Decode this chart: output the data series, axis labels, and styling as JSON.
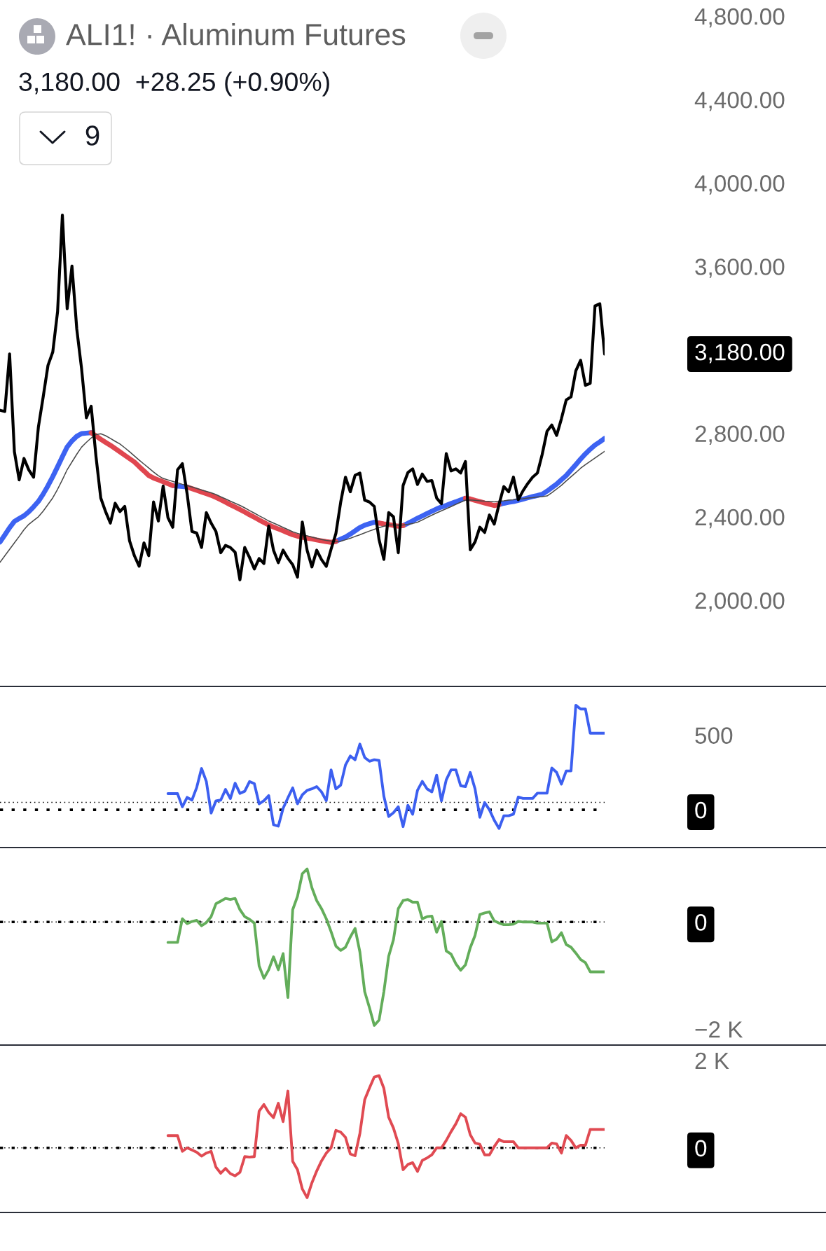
{
  "chart_data": [
    {
      "type": "line",
      "title": "ALI1! · Aluminum Futures",
      "subtitle": "3,180.00  +28.25 (+0.90%)",
      "categories": [
        null,
        null,
        null,
        null,
        null,
        null,
        null,
        null,
        null,
        null,
        null,
        null,
        null,
        null,
        null,
        null,
        null,
        null,
        null,
        null,
        null,
        null,
        null,
        null,
        null,
        null,
        null,
        null,
        null,
        null,
        null,
        null,
        null,
        null,
        null,
        null,
        null,
        null,
        null,
        null,
        null,
        null,
        null,
        null,
        null,
        null,
        null,
        null,
        null,
        null,
        null,
        null,
        null,
        null,
        null,
        null,
        null,
        null,
        null,
        null,
        null,
        null,
        null,
        null,
        null,
        null,
        null,
        null,
        null,
        null,
        null,
        null,
        null,
        null,
        null,
        null,
        null,
        null,
        null,
        null,
        null,
        null,
        null,
        null,
        null,
        null,
        null,
        null,
        null,
        null,
        null,
        null,
        null,
        null,
        null,
        null,
        null,
        null,
        null,
        null,
        null,
        null,
        null,
        null,
        null,
        null,
        null,
        null,
        null,
        null,
        null,
        null,
        null,
        null,
        null,
        null,
        null,
        null,
        null,
        null,
        null,
        null,
        null,
        null,
        null,
        null,
        null
      ],
      "series": [
        {
          "color": "#3d63f2",
          "values": [
            2279,
            2313,
            2348,
            2378,
            2392,
            2405,
            2424,
            2448,
            2474,
            2509,
            2549,
            2593,
            2640,
            2688,
            2735,
            2764,
            2786,
            2799,
            2801,
            2803,
            null,
            null,
            null,
            null,
            null,
            null,
            null,
            null,
            null,
            null,
            null,
            null,
            null,
            null,
            null,
            null,
            2550,
            2547,
            2545,
            2543,
            null,
            null,
            null,
            null,
            null,
            null,
            null,
            null,
            null,
            null,
            null,
            null,
            null,
            null,
            null,
            null,
            null,
            null,
            null,
            null,
            null,
            null,
            null,
            null,
            null,
            null,
            null,
            null,
            null,
            null,
            2282,
            2293,
            2303,
            2317,
            2333,
            2349,
            2360,
            2367,
            2374,
            2370,
            null,
            null,
            null,
            null,
            2358,
            2369,
            2381,
            2393,
            2404,
            2416,
            2427,
            2438,
            2447,
            2455,
            2464,
            2472,
            2481,
            2489,
            null,
            null,
            null,
            null,
            null,
            null,
            2459,
            2465,
            2470,
            2473,
            2479,
            2485,
            2491,
            2497,
            2502,
            2508,
            2523,
            2540,
            2557,
            2578,
            2598,
            2624,
            2650,
            2677,
            2702,
            2724,
            2744,
            2759,
            2776
          ]
        },
        {
          "color": "#e0464f",
          "values": [
            null,
            null,
            null,
            null,
            null,
            null,
            null,
            null,
            null,
            null,
            null,
            null,
            null,
            null,
            null,
            null,
            null,
            null,
            null,
            2803,
            2788,
            2772,
            2757,
            2743,
            2727,
            2711,
            2695,
            2679,
            2663,
            2641,
            2620,
            2598,
            2586,
            2577,
            2568,
            2559,
            2550,
            null,
            null,
            2543,
            2535,
            2527,
            2519,
            2511,
            2503,
            2493,
            2482,
            2470,
            2458,
            2447,
            2435,
            2423,
            2410,
            2398,
            2385,
            2373,
            2361,
            2351,
            2342,
            2333,
            2323,
            2314,
            2307,
            2302,
            2298,
            2294,
            2289,
            2285,
            2281,
            2278,
            2282,
            null,
            null,
            null,
            null,
            null,
            null,
            null,
            null,
            2370,
            2366,
            2363,
            2359,
            2355,
            2358,
            null,
            null,
            null,
            null,
            null,
            null,
            null,
            null,
            null,
            null,
            null,
            null,
            2489,
            2486,
            2479,
            2473,
            2466,
            2460,
            2454,
            2459,
            null,
            null,
            null,
            null,
            null,
            null,
            null,
            null,
            null,
            null,
            null,
            null,
            null,
            null,
            null,
            null,
            null,
            null,
            null,
            null,
            null,
            null
          ]
        },
        {
          "color": "#4a4a4a",
          "values": [
            2182,
            2213,
            2244,
            2275,
            2306,
            2338,
            2364,
            2382,
            2400,
            2427,
            2459,
            2491,
            2532,
            2578,
            2626,
            2663,
            2700,
            2734,
            2757,
            2778,
            2794,
            2798,
            2789,
            2776,
            2762,
            2749,
            2731,
            2712,
            2692,
            2672,
            2653,
            2634,
            2615,
            2597,
            2584,
            2577,
            2570,
            2563,
            2556,
            2550,
            2543,
            2536,
            2529,
            2522,
            2515,
            2507,
            2496,
            2486,
            2475,
            2465,
            2455,
            2443,
            2430,
            2418,
            2405,
            2393,
            2380,
            2370,
            2360,
            2349,
            2339,
            2328,
            2321,
            2315,
            2309,
            2303,
            2297,
            2291,
            2287,
            2284,
            2280,
            2283,
            2290,
            2297,
            2306,
            2314,
            2323,
            2332,
            2340,
            2348,
            2355,
            2362,
            2361,
            2360,
            2361,
            2364,
            2368,
            2374,
            2385,
            2397,
            2408,
            2419,
            2429,
            2439,
            2449,
            2460,
            2470,
            2480,
            2481,
            2479,
            2477,
            2475,
            2474,
            2472,
            2475,
            2477,
            2480,
            2482,
            2485,
            2487,
            2490,
            2492,
            2495,
            2497,
            2500,
            2516,
            2533,
            2551,
            2572,
            2592,
            2612,
            2633,
            2650,
            2666,
            2682,
            2698,
            2714
          ]
        },
        {
          "color": "#000000",
          "values": [
            2911,
            2905,
            3181,
            2712,
            2577,
            2680,
            2625,
            2590,
            2830,
            2975,
            3126,
            3190,
            3384,
            3846,
            3397,
            3602,
            3300,
            3110,
            2875,
            2930,
            2690,
            2490,
            2425,
            2370,
            2465,
            2425,
            2450,
            2285,
            2214,
            2163,
            2275,
            2214,
            2471,
            2380,
            2548,
            2396,
            2350,
            2625,
            2655,
            2510,
            2330,
            2322,
            2253,
            2420,
            2370,
            2330,
            2228,
            2263,
            2253,
            2230,
            2098,
            2253,
            2205,
            2150,
            2200,
            2176,
            2356,
            2240,
            2180,
            2240,
            2201,
            2170,
            2111,
            2375,
            2240,
            2160,
            2240,
            2195,
            2163,
            2245,
            2320,
            2470,
            2590,
            2520,
            2599,
            2610,
            2480,
            2471,
            2450,
            2290,
            2196,
            2420,
            2400,
            2228,
            2550,
            2612,
            2630,
            2555,
            2605,
            2570,
            2574,
            2490,
            2463,
            2703,
            2620,
            2630,
            2610,
            2665,
            2242,
            2280,
            2350,
            2325,
            2409,
            2365,
            2460,
            2545,
            2520,
            2590,
            2482,
            2525,
            2560,
            2590,
            2610,
            2700,
            2810,
            2840,
            2790,
            2870,
            2960,
            2975,
            3100,
            3150,
            3030,
            3040,
            3411,
            3421,
            3180
          ]
        }
      ],
      "ylim": [
        1587,
        4800
      ],
      "yticks": [
        {
          "value": 2000,
          "label": "2,000.00"
        },
        {
          "value": 2400,
          "label": "2,400.00"
        },
        {
          "value": 2800,
          "label": "2,800.00"
        },
        {
          "value": 3600,
          "label": "3,600.00"
        },
        {
          "value": 4000,
          "label": "4,000.00"
        },
        {
          "value": 4400,
          "label": "4,400.00"
        },
        {
          "value": 4800,
          "label": "4,800.00"
        }
      ],
      "tick_labels": "y",
      "annotations": [
        "3,180.00",
        "9"
      ]
    },
    {
      "type": "line",
      "categories": [
        null,
        null,
        null,
        null,
        null,
        null,
        null,
        null,
        null,
        null,
        null,
        null,
        null,
        null,
        null,
        null,
        null,
        null,
        null,
        null,
        null,
        null,
        null,
        null,
        null,
        null,
        null,
        null,
        null,
        null,
        null,
        null,
        null,
        null,
        null,
        null,
        null,
        null,
        null,
        null,
        null,
        null,
        null,
        null,
        null,
        null,
        null,
        null,
        null,
        null,
        null,
        null,
        null,
        null,
        null,
        null,
        null,
        null,
        null,
        null,
        null,
        null,
        null,
        null,
        null,
        null,
        null,
        null,
        null,
        null,
        null,
        null,
        null,
        null,
        null,
        null,
        null,
        null,
        null,
        null,
        null,
        null,
        null,
        null,
        null,
        null,
        null,
        null,
        null,
        null,
        null,
        null,
        null,
        null,
        null,
        null,
        null,
        null,
        null,
        null,
        null,
        null,
        null,
        null,
        null,
        null,
        null,
        null,
        null,
        null,
        null,
        null,
        null,
        null,
        null,
        null,
        null,
        null,
        null,
        null,
        null,
        null,
        null,
        null,
        null,
        null,
        null
      ],
      "series": [
        {
          "color": "#3c5ff0",
          "values": [
            null,
            null,
            null,
            null,
            null,
            null,
            null,
            null,
            null,
            null,
            null,
            null,
            null,
            null,
            null,
            null,
            null,
            null,
            null,
            null,
            null,
            null,
            null,
            null,
            null,
            null,
            null,
            null,
            null,
            null,
            null,
            null,
            null,
            null,
            null,
            108,
            108,
            108,
            20,
            83,
            65,
            150,
            277,
            190,
            -22,
            59,
            65,
            136,
            75,
            178,
            110,
            124,
            189,
            175,
            40,
            61,
            95,
            -100,
            -110,
            10,
            80,
            147,
            40,
            100,
            130,
            140,
            155,
            120,
            61,
            267,
            140,
            165,
            300,
            360,
            335,
            440,
            350,
            325,
            335,
            330,
            90,
            -45,
            -20,
            20,
            -113,
            30,
            -30,
            130,
            190,
            140,
            120,
            232,
            60,
            200,
            267,
            267,
            161,
            155,
            250,
            140,
            -50,
            48,
            0,
            -70,
            -125,
            -40,
            -40,
            -30,
            85,
            76,
            76,
            76,
            111,
            111,
            111,
            280,
            250,
            172,
            260,
            260,
            700,
            675,
            675,
            513,
            513,
            513,
            513
          ]
        }
      ],
      "ylim": [
        -253,
        826
      ],
      "yticks": [
        0,
        500
      ],
      "tick_labels": "y",
      "ref_lines": [
        {
          "axis": "y",
          "value": 50,
          "line_style": "dotted",
          "color": "#000000"
        },
        {
          "axis": "y",
          "value": 0,
          "line_style": "dashed",
          "color": "#000000"
        }
      ]
    },
    {
      "type": "line",
      "categories": [
        null,
        null,
        null,
        null,
        null,
        null,
        null,
        null,
        null,
        null,
        null,
        null,
        null,
        null,
        null,
        null,
        null,
        null,
        null,
        null,
        null,
        null,
        null,
        null,
        null,
        null,
        null,
        null,
        null,
        null,
        null,
        null,
        null,
        null,
        null,
        null,
        null,
        null,
        null,
        null,
        null,
        null,
        null,
        null,
        null,
        null,
        null,
        null,
        null,
        null,
        null,
        null,
        null,
        null,
        null,
        null,
        null,
        null,
        null,
        null,
        null,
        null,
        null,
        null,
        null,
        null,
        null,
        null,
        null,
        null,
        null,
        null,
        null,
        null,
        null,
        null,
        null,
        null,
        null,
        null,
        null,
        null,
        null,
        null,
        null,
        null,
        null,
        null,
        null,
        null,
        null,
        null,
        null,
        null,
        null,
        null,
        null,
        null,
        null,
        null,
        null,
        null,
        null,
        null,
        null,
        null,
        null,
        null,
        null,
        null,
        null,
        null,
        null,
        null,
        null,
        null,
        null,
        null,
        null,
        null,
        null,
        null,
        null,
        null,
        null,
        null,
        null
      ],
      "series": [
        {
          "color": "#63ad5a",
          "values": [
            null,
            null,
            null,
            null,
            null,
            null,
            null,
            null,
            null,
            null,
            null,
            null,
            null,
            null,
            null,
            null,
            null,
            null,
            null,
            null,
            null,
            null,
            null,
            null,
            null,
            null,
            null,
            null,
            null,
            null,
            null,
            null,
            null,
            null,
            null,
            -380,
            -380,
            -380,
            60,
            -30,
            10,
            30,
            -70,
            -10,
            100,
            340,
            390,
            440,
            420,
            440,
            230,
            100,
            50,
            -20,
            -820,
            -1050,
            -890,
            -650,
            -890,
            -590,
            -1410,
            230,
            480,
            900,
            990,
            640,
            400,
            250,
            60,
            -180,
            -450,
            -530,
            -470,
            -280,
            -120,
            -560,
            -1300,
            -1600,
            -1930,
            -1830,
            -1300,
            -640,
            -330,
            250,
            400,
            420,
            370,
            370,
            60,
            100,
            110,
            -190,
            10,
            -540,
            -600,
            -780,
            -900,
            -800,
            -480,
            -250,
            140,
            170,
            190,
            20,
            -20,
            -50,
            -50,
            -40,
            10,
            0,
            0,
            0,
            -20,
            -20,
            -20,
            -370,
            -320,
            -200,
            -420,
            -470,
            -580,
            -700,
            -760,
            -930,
            -930,
            -930,
            -930
          ]
        }
      ],
      "ylim": [
        -2297,
        1390
      ],
      "yticks": [
        0,
        {
          "value": -2000,
          "label": "−2 K"
        }
      ],
      "tick_labels": "y",
      "ref_lines": [
        {
          "axis": "y",
          "value": 0,
          "line_style": "dotted",
          "color": "#000000"
        },
        {
          "axis": "y",
          "value": 0,
          "line_style": "dashed",
          "color": "#000000"
        }
      ]
    },
    {
      "type": "line",
      "categories": [
        null,
        null,
        null,
        null,
        null,
        null,
        null,
        null,
        null,
        null,
        null,
        null,
        null,
        null,
        null,
        null,
        null,
        null,
        null,
        null,
        null,
        null,
        null,
        null,
        null,
        null,
        null,
        null,
        null,
        null,
        null,
        null,
        null,
        null,
        null,
        null,
        null,
        null,
        null,
        null,
        null,
        null,
        null,
        null,
        null,
        null,
        null,
        null,
        null,
        null,
        null,
        null,
        null,
        null,
        null,
        null,
        null,
        null,
        null,
        null,
        null,
        null,
        null,
        null,
        null,
        null,
        null,
        null,
        null,
        null,
        null,
        null,
        null,
        null,
        null,
        null,
        null,
        null,
        null,
        null,
        null,
        null,
        null,
        null,
        null,
        null,
        null,
        null,
        null,
        null,
        null,
        null,
        null,
        null,
        null,
        null,
        null,
        null,
        null,
        null,
        null,
        null,
        null,
        null,
        null,
        null,
        null,
        null,
        null,
        null,
        null,
        null,
        null,
        null,
        null,
        null,
        null,
        null,
        null,
        null,
        null,
        null,
        null,
        null,
        null,
        null,
        null
      ],
      "series": [
        {
          "color": "#e04a52",
          "values": [
            null,
            null,
            null,
            null,
            null,
            null,
            null,
            null,
            null,
            null,
            null,
            null,
            null,
            null,
            null,
            null,
            null,
            null,
            null,
            null,
            null,
            null,
            null,
            null,
            null,
            null,
            null,
            null,
            null,
            null,
            null,
            null,
            null,
            null,
            null,
            280,
            280,
            280,
            -80,
            0,
            -50,
            -100,
            -190,
            -120,
            -80,
            -440,
            -580,
            -470,
            -590,
            -640,
            -560,
            -200,
            -210,
            -200,
            840,
            990,
            810,
            690,
            1020,
            600,
            1300,
            -310,
            -500,
            -940,
            -1140,
            -800,
            -530,
            -300,
            -120,
            0,
            400,
            360,
            240,
            -140,
            -180,
            330,
            1100,
            1370,
            1620,
            1650,
            1360,
            700,
            450,
            100,
            -500,
            -380,
            -340,
            -540,
            -290,
            -230,
            -160,
            0,
            0,
            170,
            370,
            550,
            780,
            700,
            300,
            110,
            80,
            -160,
            -160,
            30,
            190,
            140,
            140,
            140,
            0,
            0,
            0,
            0,
            0,
            0,
            0,
            110,
            90,
            -120,
            280,
            170,
            0,
            60,
            60,
            420,
            420,
            420,
            420
          ]
        }
      ],
      "ylim": [
        -1478,
        2350
      ],
      "yticks": [
        0,
        {
          "value": 2000,
          "label": "2 K"
        }
      ],
      "tick_labels": "y",
      "ref_lines": [
        {
          "axis": "y",
          "value": 0,
          "line_style": "dotted",
          "color": "#000000"
        },
        {
          "axis": "y",
          "value": 0,
          "line_style": "dashed",
          "color": "#000000"
        }
      ]
    }
  ]
}
